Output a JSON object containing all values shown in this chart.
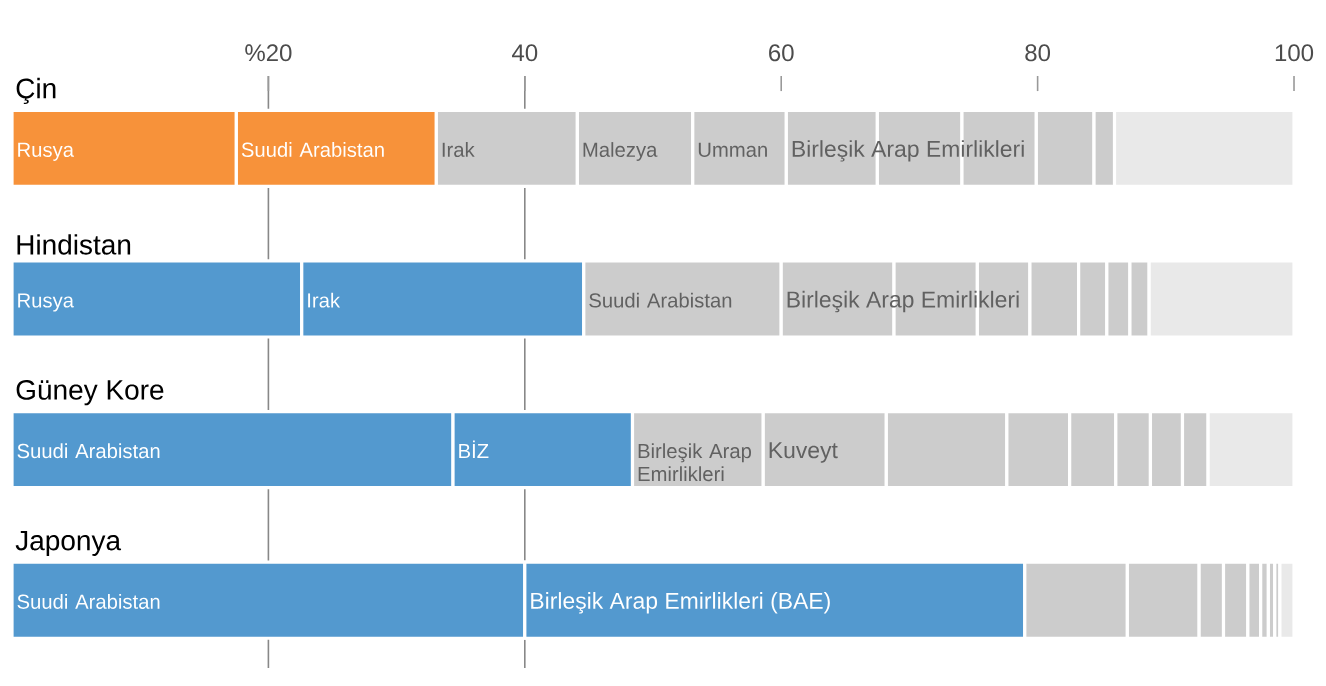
{
  "chart_data": {
    "type": "bar",
    "orientation": "horizontal",
    "stacked": true,
    "categories": [
      "Çin",
      "Hindistan",
      "Güney Kore",
      "Japonya"
    ],
    "xlim": [
      0,
      100
    ],
    "xticks": [
      {
        "value": 20,
        "label": "%20"
      },
      40,
      60,
      80,
      100
    ],
    "grid": false,
    "tick_labels": "x",
    "ref_lines": [
      {
        "axis": "x",
        "value": 20,
        "color": "#888888"
      },
      {
        "axis": "x",
        "value": 40,
        "color": "#888888"
      }
    ],
    "series": [
      {
        "values": [
          17.5,
          22.6,
          34.4,
          40.0
        ],
        "colors": [
          "#f7923a",
          "#5399cf",
          "#5399cf",
          "#5399cf"
        ],
        "value_labels": [
          "Rusya",
          "Rusya",
          "Suudi Arabistan",
          "Suudi Arabistan"
        ]
      },
      {
        "values": [
          15.6,
          22.0,
          14.0,
          39.0
        ],
        "colors": [
          "#f7923a",
          "#5399cf",
          "#5399cf",
          "#5399cf"
        ],
        "value_labels": [
          "Suudi Arabistan",
          "Irak",
          "BİZ",
          "Birleşik Arap Emirlikleri (BAE)"
        ]
      },
      {
        "values": [
          11.0,
          15.4,
          10.2,
          8.0
        ],
        "colors": [
          "#cccccc",
          "#cccccc",
          "#cccccc",
          "#cccccc"
        ],
        "value_labels": [
          "Irak",
          "Suudi Arabistan",
          "Birleşik Arap Emirlikleri",
          null
        ]
      },
      {
        "values": [
          9.0,
          8.8,
          9.6,
          5.6
        ],
        "colors": [
          "#cccccc",
          "#cccccc",
          "#cccccc",
          "#cccccc"
        ],
        "value_labels": [
          "Malezya",
          "Birleşik Arap Emirlikleri",
          "Kuveyt",
          null
        ]
      },
      {
        "values": [
          7.3,
          6.5,
          9.4,
          1.9
        ],
        "colors": [
          "#cccccc",
          "#cccccc",
          "#cccccc",
          "#cccccc"
        ],
        "value_labels": [
          "Umman",
          null,
          null,
          null
        ]
      },
      {
        "values": [
          7.1,
          4.1,
          4.9,
          1.9
        ],
        "colors": [
          "#cccccc",
          "#cccccc",
          "#cccccc",
          "#cccccc"
        ],
        "value_labels": [
          "Birleşik Arap Emirlikleri",
          null,
          null,
          null
        ]
      },
      {
        "values": [
          6.6,
          3.8,
          3.6,
          1.0
        ],
        "colors": [
          "#cccccc",
          "#cccccc",
          "#cccccc",
          "#cccccc"
        ]
      },
      {
        "values": [
          5.8,
          2.2,
          2.7,
          0.6
        ],
        "colors": [
          "#cccccc",
          "#cccccc",
          "#cccccc",
          "#cccccc"
        ]
      },
      {
        "values": [
          4.5,
          1.8,
          2.5,
          0.5
        ],
        "colors": [
          "#cccccc",
          "#cccccc",
          "#cccccc",
          "#cccccc"
        ]
      },
      {
        "values": [
          1.6,
          1.5,
          2.0,
          0.4
        ],
        "colors": [
          "#cccccc",
          "#cccccc",
          "#cccccc",
          "#cccccc"
        ]
      },
      {
        "values": [
          14.0,
          11.3,
          6.7,
          1.1
        ],
        "colors": [
          "#e9e9e9",
          "#e9e9e9",
          "#e9e9e9",
          "#e9e9e9"
        ]
      }
    ]
  }
}
